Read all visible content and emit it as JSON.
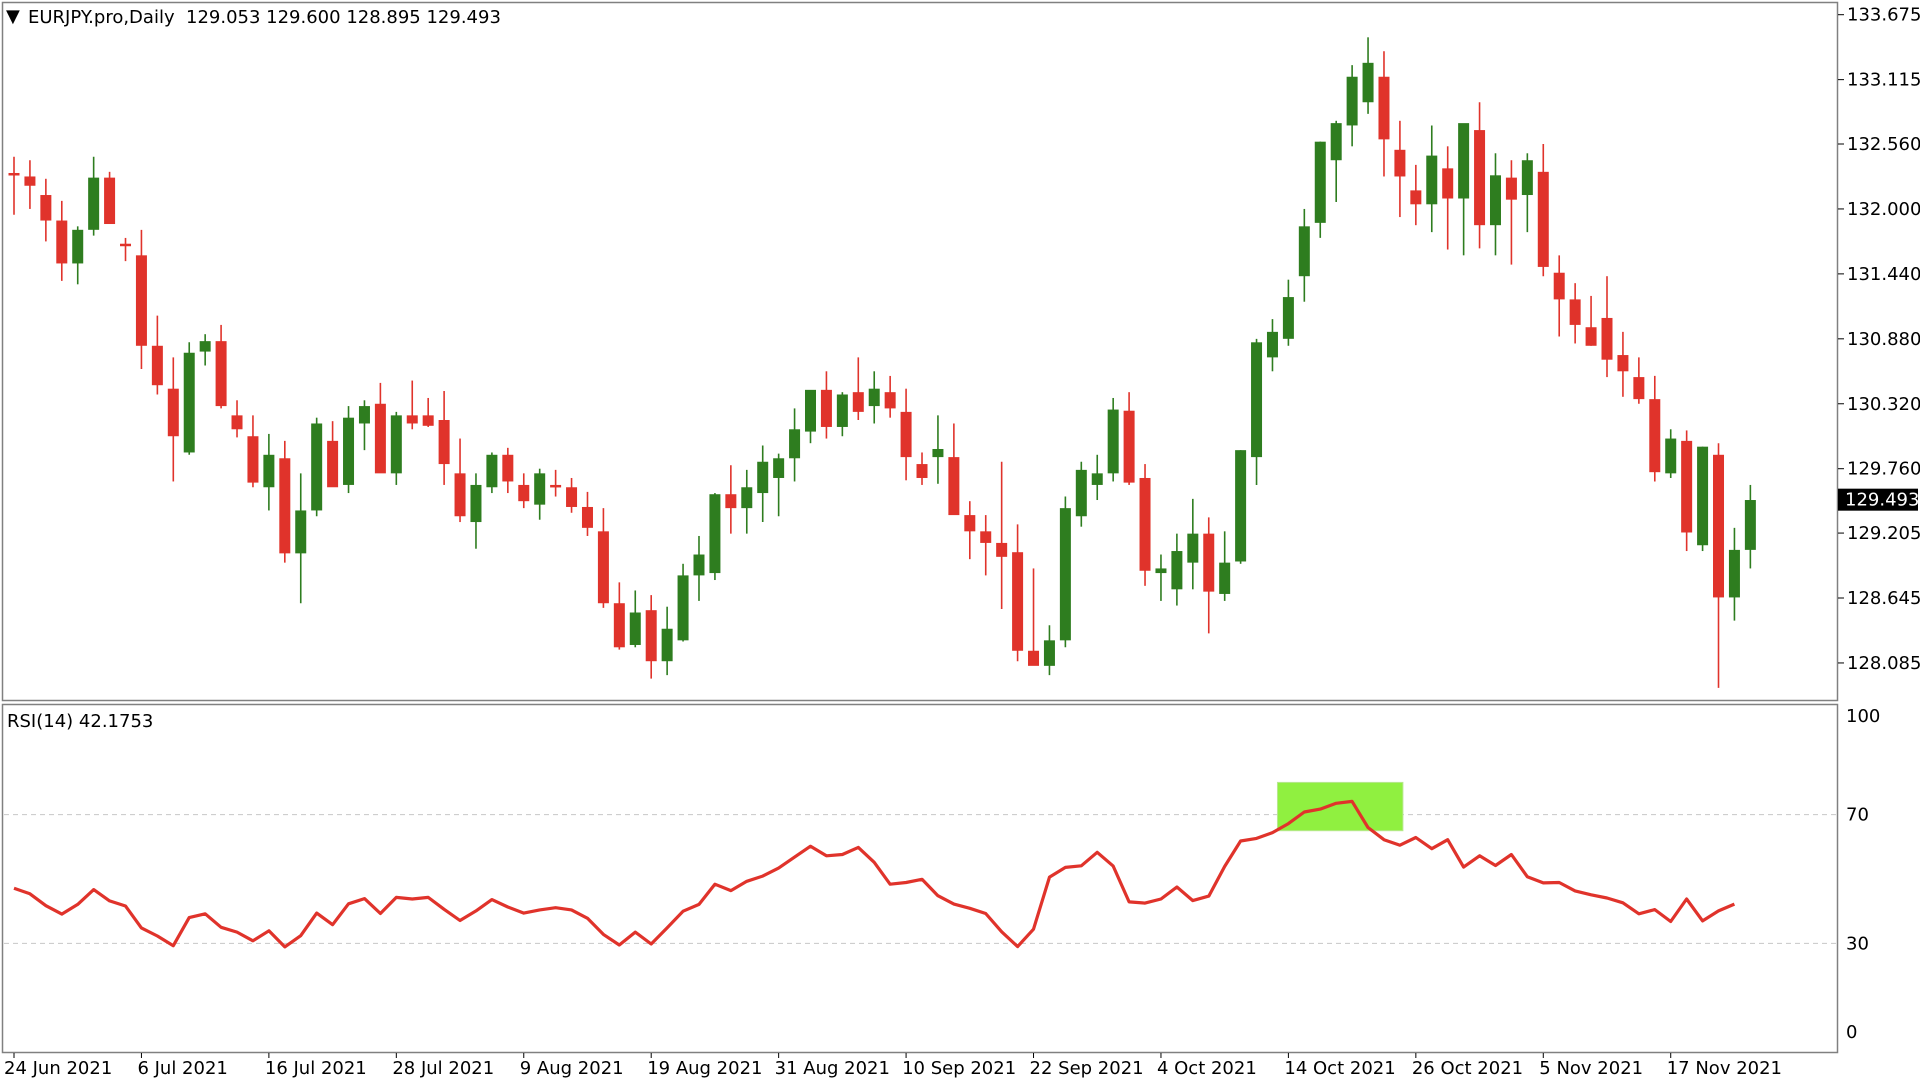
{
  "header": {
    "symbol": "EURJPY.pro,Daily",
    "ohlc": "129.053 129.600 128.895 129.493"
  },
  "colors": {
    "bull": "#2e7d1f",
    "bear": "#e0332b",
    "rsi_line": "#e0332b",
    "highlight": "#90f040",
    "price_tag_bg": "#000000",
    "price_tag_text": "#ffffff"
  },
  "chart_data": [
    {
      "type": "candlestick",
      "title": "EURJPY.pro,Daily",
      "ylim": [
        127.8,
        133.75
      ],
      "y_ticks": [
        "133.675",
        "133.115",
        "132.560",
        "132.000",
        "131.440",
        "130.880",
        "130.320",
        "129.760",
        "129.205",
        "128.645",
        "128.085"
      ],
      "current_price": "129.493",
      "x_ticks": [
        "24 Jun 2021",
        "6 Jul 2021",
        "16 Jul 2021",
        "28 Jul 2021",
        "9 Aug 2021",
        "19 Aug 2021",
        "31 Aug 2021",
        "10 Sep 2021",
        "22 Sep 2021",
        "4 Oct 2021",
        "14 Oct 2021",
        "26 Oct 2021",
        "5 Nov 2021",
        "17 Nov 2021"
      ],
      "candles_ohlc": [
        [
          132.31,
          132.45,
          131.95,
          132.29
        ],
        [
          132.28,
          132.42,
          132.0,
          132.2
        ],
        [
          132.12,
          132.26,
          131.72,
          131.9
        ],
        [
          131.9,
          132.07,
          131.38,
          131.53
        ],
        [
          131.53,
          131.85,
          131.35,
          131.82
        ],
        [
          131.82,
          132.45,
          131.77,
          132.27
        ],
        [
          132.27,
          132.32,
          131.9,
          131.87
        ],
        [
          131.7,
          131.75,
          131.55,
          131.68
        ],
        [
          131.6,
          131.82,
          130.62,
          130.82
        ],
        [
          130.82,
          131.08,
          130.4,
          130.48
        ],
        [
          130.45,
          130.72,
          129.65,
          130.04
        ],
        [
          129.9,
          130.85,
          129.88,
          130.76
        ],
        [
          130.77,
          130.92,
          130.65,
          130.86
        ],
        [
          130.86,
          131.0,
          130.28,
          130.3
        ],
        [
          130.22,
          130.35,
          130.03,
          130.1
        ],
        [
          130.04,
          130.22,
          129.6,
          129.64
        ],
        [
          129.6,
          130.06,
          129.4,
          129.88
        ],
        [
          129.85,
          130.0,
          128.95,
          129.03
        ],
        [
          129.03,
          129.72,
          128.6,
          129.4
        ],
        [
          129.4,
          130.2,
          129.35,
          130.15
        ],
        [
          130.0,
          130.17,
          129.65,
          129.6
        ],
        [
          129.62,
          130.3,
          129.55,
          130.2
        ],
        [
          130.15,
          130.35,
          129.92,
          130.3
        ],
        [
          130.32,
          130.5,
          129.75,
          129.72
        ],
        [
          129.72,
          130.25,
          129.62,
          130.22
        ],
        [
          130.22,
          130.52,
          130.1,
          130.15
        ],
        [
          130.22,
          130.37,
          130.12,
          130.13
        ],
        [
          130.18,
          130.43,
          129.62,
          129.8
        ],
        [
          129.72,
          130.02,
          129.3,
          129.35
        ],
        [
          129.3,
          129.72,
          129.07,
          129.62
        ],
        [
          129.6,
          129.9,
          129.55,
          129.88
        ],
        [
          129.88,
          129.94,
          129.55,
          129.65
        ],
        [
          129.62,
          129.72,
          129.42,
          129.48
        ],
        [
          129.45,
          129.76,
          129.32,
          129.72
        ],
        [
          129.62,
          129.75,
          129.52,
          129.6
        ],
        [
          129.6,
          129.68,
          129.38,
          129.43
        ],
        [
          129.43,
          129.56,
          129.18,
          129.25
        ],
        [
          129.22,
          129.42,
          128.56,
          128.6
        ],
        [
          128.6,
          128.78,
          128.2,
          128.22
        ],
        [
          128.24,
          128.71,
          128.22,
          128.52
        ],
        [
          128.54,
          128.67,
          127.95,
          128.1
        ],
        [
          128.1,
          128.57,
          127.98,
          128.38
        ],
        [
          128.28,
          128.94,
          128.27,
          128.84
        ],
        [
          128.84,
          129.18,
          128.62,
          129.02
        ],
        [
          128.86,
          129.55,
          128.8,
          129.54
        ],
        [
          129.54,
          129.79,
          129.2,
          129.42
        ],
        [
          129.42,
          129.75,
          129.2,
          129.6
        ],
        [
          129.55,
          129.96,
          129.3,
          129.82
        ],
        [
          129.68,
          129.89,
          129.35,
          129.85
        ],
        [
          129.85,
          130.28,
          129.65,
          130.1
        ],
        [
          130.08,
          130.38,
          129.98,
          130.44
        ],
        [
          130.44,
          130.6,
          130.02,
          130.12
        ],
        [
          130.12,
          130.42,
          130.04,
          130.4
        ],
        [
          130.42,
          130.72,
          130.18,
          130.25
        ],
        [
          130.3,
          130.6,
          130.15,
          130.45
        ],
        [
          130.42,
          130.56,
          130.2,
          130.28
        ],
        [
          130.25,
          130.45,
          129.66,
          129.86
        ],
        [
          129.8,
          129.9,
          129.62,
          129.68
        ],
        [
          129.86,
          130.22,
          129.63,
          129.93
        ],
        [
          129.86,
          130.15,
          129.45,
          129.36
        ],
        [
          129.36,
          129.48,
          128.98,
          129.22
        ],
        [
          129.22,
          129.36,
          128.84,
          129.12
        ],
        [
          129.12,
          129.82,
          128.55,
          129.0
        ],
        [
          129.04,
          129.28,
          128.1,
          128.19
        ],
        [
          128.19,
          128.9,
          128.12,
          128.06
        ],
        [
          128.06,
          128.41,
          127.98,
          128.28
        ],
        [
          128.28,
          129.52,
          128.22,
          129.42
        ],
        [
          129.35,
          129.82,
          129.26,
          129.75
        ],
        [
          129.62,
          129.88,
          129.49,
          129.72
        ],
        [
          129.72,
          130.37,
          129.65,
          130.27
        ],
        [
          130.26,
          130.42,
          129.62,
          129.64
        ],
        [
          129.68,
          129.8,
          128.75,
          128.88
        ],
        [
          128.86,
          129.02,
          128.62,
          128.9
        ],
        [
          128.72,
          129.2,
          128.58,
          129.05
        ],
        [
          128.95,
          129.5,
          128.72,
          129.2
        ],
        [
          129.2,
          129.34,
          128.34,
          128.7
        ],
        [
          128.68,
          129.22,
          128.62,
          128.95
        ],
        [
          128.96,
          129.92,
          128.94,
          129.92
        ],
        [
          129.86,
          130.88,
          129.62,
          130.85
        ],
        [
          130.72,
          131.05,
          130.6,
          130.94
        ],
        [
          130.88,
          131.39,
          130.82,
          131.24
        ],
        [
          131.42,
          132.0,
          131.2,
          131.85
        ],
        [
          131.88,
          132.58,
          131.75,
          132.58
        ],
        [
          132.42,
          132.76,
          132.06,
          132.74
        ],
        [
          132.72,
          133.24,
          132.54,
          133.14
        ],
        [
          132.92,
          133.48,
          132.82,
          133.26
        ],
        [
          133.14,
          133.36,
          132.28,
          132.6
        ],
        [
          132.51,
          132.76,
          131.93,
          132.28
        ],
        [
          132.16,
          132.38,
          131.86,
          132.04
        ],
        [
          132.04,
          132.72,
          131.8,
          132.46
        ],
        [
          132.35,
          132.54,
          131.65,
          132.09
        ],
        [
          132.09,
          132.7,
          131.6,
          132.74
        ],
        [
          132.68,
          132.92,
          131.66,
          131.86
        ],
        [
          131.86,
          132.48,
          131.6,
          132.29
        ],
        [
          132.27,
          132.42,
          131.52,
          132.08
        ],
        [
          132.12,
          132.48,
          131.8,
          132.42
        ],
        [
          132.32,
          132.56,
          131.42,
          131.5
        ],
        [
          131.45,
          131.6,
          130.9,
          131.22
        ],
        [
          131.22,
          131.36,
          130.84,
          131.0
        ],
        [
          130.98,
          131.25,
          130.82,
          130.82
        ],
        [
          131.06,
          131.42,
          130.55,
          130.7
        ],
        [
          130.74,
          130.94,
          130.38,
          130.6
        ],
        [
          130.55,
          130.72,
          130.32,
          130.36
        ],
        [
          130.36,
          130.56,
          129.65,
          129.73
        ],
        [
          129.72,
          130.1,
          129.68,
          130.02
        ],
        [
          130.0,
          130.09,
          129.05,
          129.21
        ],
        [
          129.1,
          129.95,
          129.05,
          129.95
        ],
        [
          129.88,
          129.98,
          127.87,
          128.65
        ],
        [
          128.65,
          129.25,
          128.45,
          129.06
        ],
        [
          129.06,
          129.62,
          128.9,
          129.49
        ]
      ]
    },
    {
      "type": "line",
      "title": "RSI(14) 42.1753",
      "ylim": [
        0,
        100
      ],
      "y_ticks": [
        "100",
        "70",
        "30",
        "0"
      ],
      "levels": [
        70,
        30
      ],
      "series": [
        {
          "name": "RSI(14)",
          "values": [
            47.1,
            45.4,
            41.7,
            39.1,
            42.1,
            46.7,
            43.2,
            41.6,
            34.8,
            32.3,
            29.3,
            38.0,
            39.2,
            35.0,
            33.5,
            30.8,
            33.9,
            28.9,
            32.4,
            39.4,
            35.8,
            42.3,
            43.9,
            39.3,
            44.3,
            43.8,
            44.3,
            40.6,
            37.1,
            40.1,
            43.6,
            41.3,
            39.4,
            40.4,
            41.1,
            40.4,
            37.8,
            32.8,
            29.5,
            33.5,
            29.8,
            34.8,
            40.0,
            42.1,
            48.4,
            46.4,
            49.3,
            50.9,
            53.4,
            56.8,
            60.2,
            57.2,
            57.6,
            59.8,
            55.2,
            48.4,
            48.9,
            49.9,
            44.8,
            42.2,
            40.9,
            39.3,
            33.6,
            29.0,
            34.4,
            50.6,
            53.6,
            54.1,
            58.3,
            54.0,
            42.9,
            42.5,
            43.8,
            47.5,
            43.3,
            44.7,
            53.9,
            61.8,
            62.6,
            64.4,
            67.2,
            70.8,
            71.7,
            73.5,
            74.1,
            66.0,
            62.2,
            60.5,
            62.9,
            59.4,
            62.2,
            53.7,
            57.2,
            54.2,
            57.6,
            50.7,
            48.8,
            48.9,
            46.3,
            45.1,
            44.1,
            42.6,
            39.2,
            40.5,
            36.8,
            43.8,
            37.0,
            40.1,
            42.2
          ]
        }
      ]
    }
  ]
}
